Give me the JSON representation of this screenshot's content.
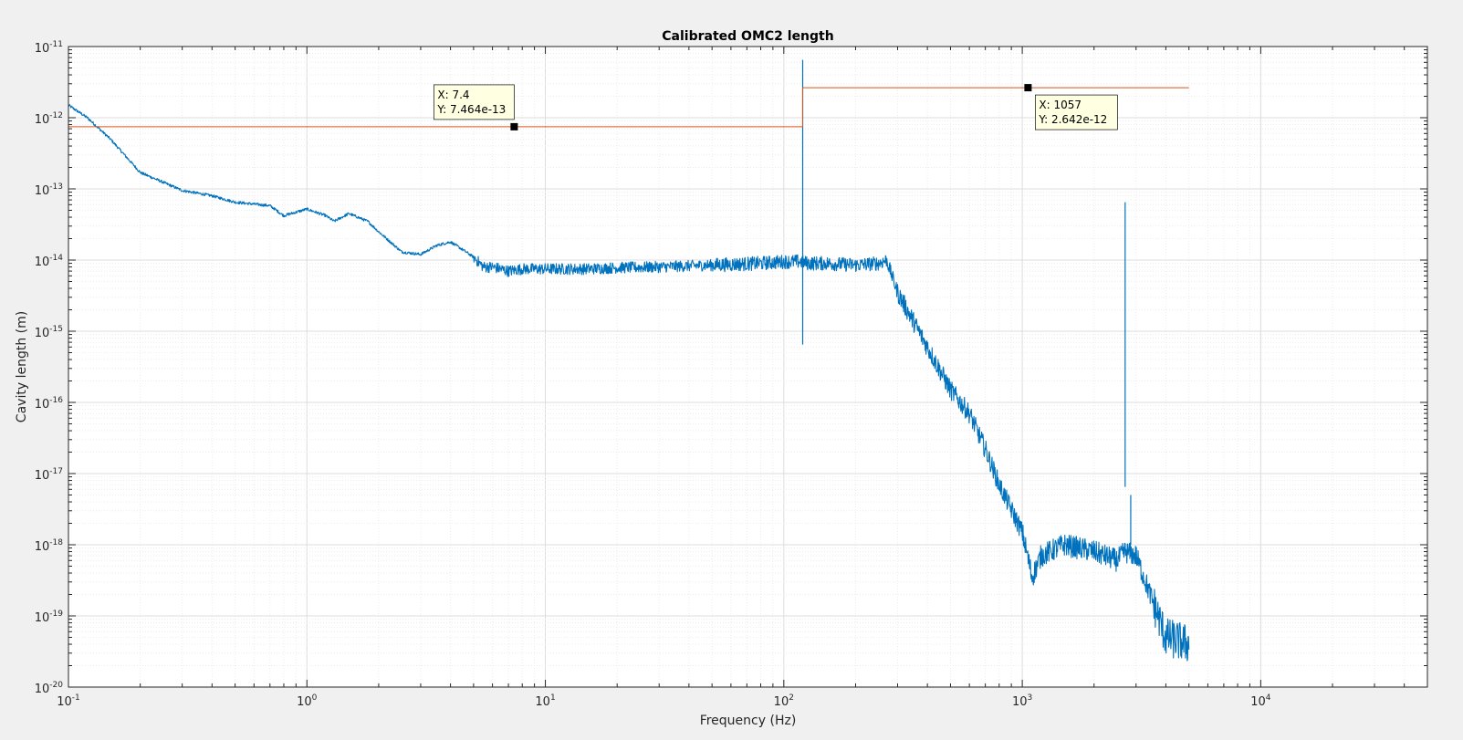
{
  "chart_data": {
    "type": "line",
    "title": "Calibrated OMC2 length",
    "xlabel": "Frequency (Hz)",
    "ylabel": "Cavity length (m)",
    "xscale": "log",
    "yscale": "log",
    "xlim": [
      0.1,
      50000
    ],
    "ylim": [
      1e-20,
      1e-11
    ],
    "grid": "on (major and minor)",
    "legend": "none",
    "x_ticks": [
      {
        "base": "10",
        "exp": "-1"
      },
      {
        "base": "10",
        "exp": "0"
      },
      {
        "base": "10",
        "exp": "1"
      },
      {
        "base": "10",
        "exp": "2"
      },
      {
        "base": "10",
        "exp": "3"
      },
      {
        "base": "10",
        "exp": "4"
      }
    ],
    "y_ticks": [
      {
        "base": "10",
        "exp": "-11"
      },
      {
        "base": "10",
        "exp": "-12"
      },
      {
        "base": "10",
        "exp": "-13"
      },
      {
        "base": "10",
        "exp": "-14"
      },
      {
        "base": "10",
        "exp": "-15"
      },
      {
        "base": "10",
        "exp": "-16"
      },
      {
        "base": "10",
        "exp": "-17"
      },
      {
        "base": "10",
        "exp": "-18"
      },
      {
        "base": "10",
        "exp": "-19"
      },
      {
        "base": "10",
        "exp": "-20"
      }
    ],
    "series": [
      {
        "color": "#0072bd",
        "kind": "asd",
        "x": [
          0.1,
          0.12,
          0.15,
          0.2,
          0.3,
          0.4,
          0.5,
          0.7,
          0.8,
          1.0,
          1.2,
          1.3,
          1.5,
          1.8,
          2.0,
          2.5,
          3.0,
          3.5,
          4.0,
          4.5,
          5.0,
          5.5,
          6.0,
          7.0,
          8.0,
          10,
          15,
          20,
          30,
          50,
          80,
          100,
          117,
          120,
          125,
          150,
          200,
          250,
          270,
          300,
          400,
          500,
          600,
          700,
          800,
          1000,
          1100,
          1200,
          1500,
          2000,
          2500,
          2700,
          3000,
          4000,
          5000
        ],
        "y": [
          1.5e-12,
          1e-12,
          5e-13,
          1.7e-13,
          9.5e-14,
          8e-14,
          6.5e-14,
          5.8e-14,
          4.2e-14,
          5.2e-14,
          4.2e-14,
          3.5e-14,
          4.5e-14,
          3.5e-14,
          2.5e-14,
          1.3e-14,
          1.2e-14,
          1.6e-14,
          1.8e-14,
          1.4e-14,
          1.1e-14,
          8e-15,
          8e-15,
          7e-15,
          7.5e-15,
          7.5e-15,
          7.5e-15,
          7.8e-15,
          8e-15,
          8.5e-15,
          9e-15,
          9.5e-15,
          9.5e-15,
          9.5e-15,
          9e-15,
          9e-15,
          8.5e-15,
          9e-15,
          1e-14,
          3.5e-15,
          6e-16,
          1.5e-16,
          7e-17,
          2.2e-17,
          7e-18,
          1.5e-18,
          3.5e-19,
          7e-19,
          1e-18,
          8e-19,
          6e-19,
          8e-19,
          7e-19,
          5e-20,
          4e-20
        ],
        "peaks": [
          {
            "x": 120,
            "y": 6.5e-12
          },
          {
            "x": 2700,
            "y": 6.5e-14
          },
          {
            "x": 2850,
            "y": 5e-18
          }
        ]
      },
      {
        "color": "#d95319",
        "kind": "rms",
        "x": [
          0.1,
          120,
          120,
          5000
        ],
        "y": [
          7.464e-13,
          7.464e-13,
          2.642e-12,
          2.642e-12
        ]
      }
    ],
    "datatips": [
      {
        "x": 7.4,
        "y": 7.464e-13,
        "line1": "X: 7.4",
        "line2": "Y: 7.464e-13",
        "box_side": "upper-left"
      },
      {
        "x": 1057,
        "y": 2.642e-12,
        "line1": "X: 1057",
        "line2": "Y: 2.642e-12",
        "box_side": "lower-right"
      }
    ]
  }
}
